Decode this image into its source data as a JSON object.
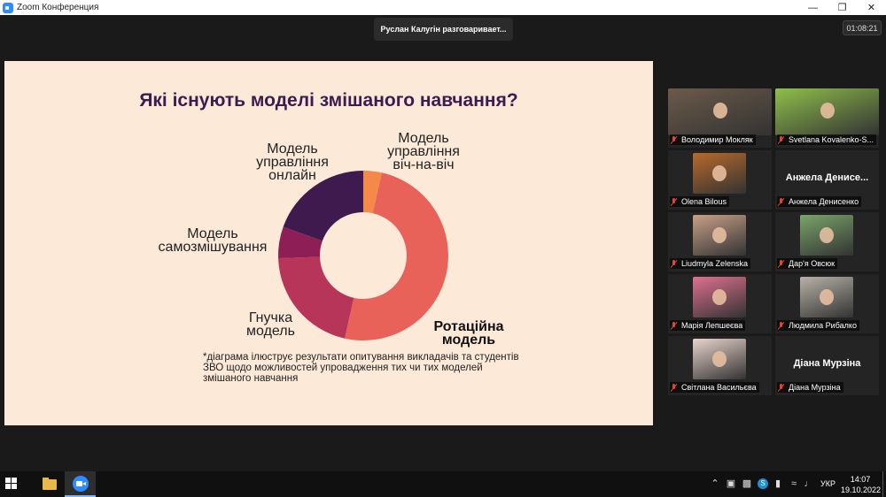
{
  "window": {
    "title": "Zoom Конференция"
  },
  "meeting": {
    "speaker_toast": "Руслан Калугін разговаривает...",
    "timer": "01:08:21"
  },
  "slide": {
    "title": "Які існують моделі змішаного навчання?",
    "labels": {
      "online": [
        "Модель",
        "управління",
        "онлайн"
      ],
      "face": [
        "Модель",
        "управління",
        "віч-на-віч"
      ],
      "self": [
        "Модель",
        "самозмішування"
      ],
      "flex": [
        "Гнучка",
        "модель"
      ],
      "rotation": [
        "Ротаційна",
        "модель"
      ]
    },
    "footnote": "*діаграма ілюструє результати опитування викладачів та студентів ЗВО щодо можливостей упровадження тих чи тих моделей змішаного навчання"
  },
  "chart_data": {
    "type": "pie",
    "variant": "donut",
    "categories": [
      "Модель управління віч-на-віч",
      "Ротаційна модель",
      "Гнучка модель",
      "Модель самозмішування",
      "Модель управління онлайн"
    ],
    "values": [
      3.5,
      50,
      21,
      6,
      19.5
    ],
    "unit": "%",
    "colors": [
      "#f5894a",
      "#e8625a",
      "#b8355a",
      "#8e1f56",
      "#3f1a4f"
    ]
  },
  "participants": [
    {
      "name": "Володимир Мокляк",
      "video": true,
      "video_color": "#6b5a4a"
    },
    {
      "name": "Svetlana Kovalenko-S...",
      "video": true,
      "video_color": "#8fbf4a"
    },
    {
      "name": "Olena Bilous",
      "video": true,
      "video_color": "#b86a2a"
    },
    {
      "name": "Анжела Денисенко",
      "big": "Анжела Денисе...",
      "video": false
    },
    {
      "name": "Liudmyla Zelenska",
      "video": true,
      "video_color": "#c9a088"
    },
    {
      "name": "Дар'я Овсюк",
      "video": true,
      "video_color": "#7aa56a"
    },
    {
      "name": "Марія Лепшеєва",
      "video": true,
      "video_color": "#e07090"
    },
    {
      "name": "Людмила Рибалко",
      "video": true,
      "video_color": "#b7b2a8"
    },
    {
      "name": "Світлана Васильєва",
      "video": true,
      "video_color": "#e8d4cc"
    },
    {
      "name": "Діана Мурзіна",
      "big": "Діана Мурзіна",
      "video": false
    }
  ],
  "taskbar": {
    "language": "УКР",
    "time": "14:07",
    "date": "19.10.2022"
  },
  "colors": {
    "accent": "#2d8cff",
    "slide_bg": "#fde9d8",
    "title": "#3d1a4f"
  }
}
